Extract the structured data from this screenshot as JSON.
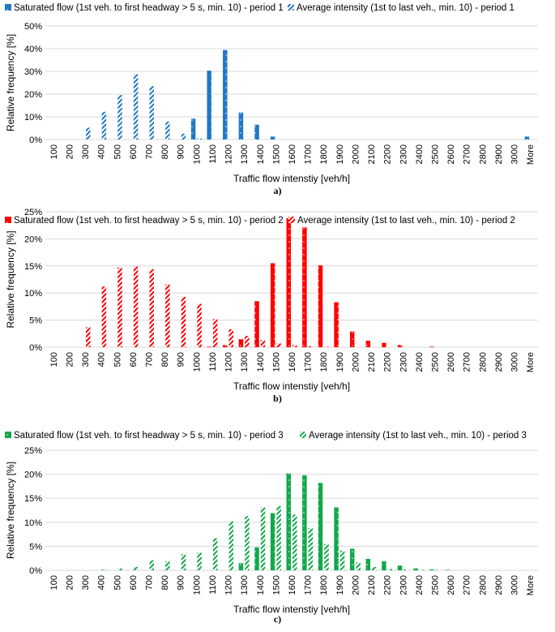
{
  "captions": [
    "a)",
    "b)",
    "c)"
  ],
  "chart_data": [
    {
      "type": "bar",
      "title": "",
      "xlabel": "Traffic flow intenstiy [veh/h]",
      "ylabel": "Relative frequency [%]",
      "ylim": [
        0,
        50
      ],
      "yticks": [
        "0%",
        "10%",
        "20%",
        "30%",
        "40%",
        "50%"
      ],
      "grid": true,
      "legend": "top",
      "color": "#1f78c8",
      "categories": [
        "100",
        "200",
        "300",
        "400",
        "500",
        "600",
        "700",
        "800",
        "900",
        "1000",
        "1100",
        "1200",
        "1300",
        "1400",
        "1500",
        "1600",
        "1700",
        "1800",
        "1900",
        "2000",
        "2100",
        "2200",
        "2300",
        "2400",
        "2500",
        "2600",
        "2700",
        "2800",
        "2900",
        "3000",
        "More"
      ],
      "series": [
        {
          "name": "Saturated flow (1st veh. to first headway > 5 s, min. 10) - period 1",
          "pattern": "dotted-solid",
          "values": [
            0,
            0,
            0,
            0,
            0,
            0,
            0,
            0,
            0,
            9.2,
            30.3,
            39.4,
            11.9,
            6.5,
            1.3,
            0,
            0,
            0,
            0,
            0,
            0,
            0,
            0,
            0,
            0,
            0,
            0,
            0,
            0,
            0,
            1.3
          ]
        },
        {
          "name": "Average intensity (1st to last veh., min. 10) - period 1",
          "pattern": "hatched",
          "values": [
            0,
            0,
            5.2,
            12.2,
            19.6,
            28.8,
            23.5,
            7.9,
            2.6,
            0.5,
            0,
            0,
            0,
            0,
            0,
            0,
            0,
            0,
            0,
            0,
            0,
            0,
            0,
            0,
            0,
            0,
            0,
            0,
            0,
            0,
            0
          ]
        }
      ]
    },
    {
      "type": "bar",
      "title": "",
      "xlabel": "Traffic flow intenstiy [veh/h]",
      "ylabel": "Relative frequency [%]",
      "ylim": [
        0,
        25
      ],
      "yticks": [
        "0%",
        "5%",
        "10%",
        "15%",
        "20%",
        "25%"
      ],
      "grid": true,
      "legend": "top",
      "color": "#ff0000",
      "categories": [
        "100",
        "200",
        "300",
        "400",
        "500",
        "600",
        "700",
        "800",
        "900",
        "1000",
        "1100",
        "1200",
        "1300",
        "1400",
        "1500",
        "1600",
        "1700",
        "1800",
        "1900",
        "2000",
        "2100",
        "2200",
        "2300",
        "2400",
        "2500",
        "2600",
        "2700",
        "2800",
        "2900",
        "3000",
        "More"
      ],
      "series": [
        {
          "name": "Saturated flow (1st veh. to first headway > 5 s, min. 10) - period 2",
          "pattern": "dotted-solid",
          "values": [
            0,
            0,
            0,
            0,
            0,
            0,
            0,
            0,
            0,
            0,
            0.1,
            0.4,
            1.5,
            8.5,
            15.5,
            23.8,
            22.1,
            15.1,
            8.3,
            2.9,
            1.2,
            0.8,
            0.4,
            0,
            0.1,
            0,
            0,
            0,
            0,
            0,
            0
          ]
        },
        {
          "name": "Average intensity (1st to last veh., min. 10) - period 2",
          "pattern": "hatched",
          "values": [
            0,
            0,
            3.7,
            11.2,
            14.7,
            14.9,
            14.4,
            11.6,
            9.3,
            8.0,
            5.2,
            3.3,
            2.1,
            1.3,
            0.7,
            0.4,
            0.2,
            0.1,
            0,
            0,
            0,
            0,
            0,
            0,
            0,
            0,
            0,
            0,
            0,
            0,
            0
          ]
        }
      ]
    },
    {
      "type": "bar",
      "title": "",
      "xlabel": "Traffic flow intenstiy [veh/h]",
      "ylabel": "Relative frequency [%]",
      "ylim": [
        0,
        25
      ],
      "yticks": [
        "0%",
        "5%",
        "10%",
        "15%",
        "20%",
        "25%"
      ],
      "grid": true,
      "legend": "top",
      "color": "#12a84a",
      "categories": [
        "100",
        "200",
        "300",
        "400",
        "500",
        "600",
        "700",
        "800",
        "900",
        "1000",
        "1100",
        "1200",
        "1300",
        "1400",
        "1500",
        "1600",
        "1700",
        "1800",
        "1900",
        "2000",
        "2100",
        "2200",
        "2300",
        "2400",
        "2500",
        "2600",
        "2700",
        "2800",
        "2900",
        "3000",
        "More"
      ],
      "series": [
        {
          "name": "Saturated flow (1st veh. to first headway > 5 s, min. 10) - period 3",
          "pattern": "dotted-solid",
          "values": [
            0,
            0,
            0,
            0,
            0,
            0,
            0,
            0,
            0,
            0,
            0,
            0,
            1.5,
            4.8,
            11.9,
            20.2,
            19.8,
            18.2,
            13.1,
            4.5,
            2.4,
            1.9,
            1.0,
            0.4,
            0.2,
            0.1,
            0,
            0,
            0,
            0,
            0
          ]
        },
        {
          "name": "Average intensity (1st to last veh., min. 10) - period 3",
          "pattern": "hatched",
          "values": [
            0,
            0,
            0,
            0.2,
            0.4,
            0.7,
            2.1,
            1.9,
            3.4,
            3.7,
            6.7,
            10.2,
            11.3,
            13.1,
            13.4,
            11.6,
            8.8,
            5.5,
            4.1,
            1.6,
            0.7,
            0.3,
            0.2,
            0.1,
            0.1,
            0,
            0,
            0,
            0,
            0,
            0
          ]
        }
      ]
    }
  ]
}
